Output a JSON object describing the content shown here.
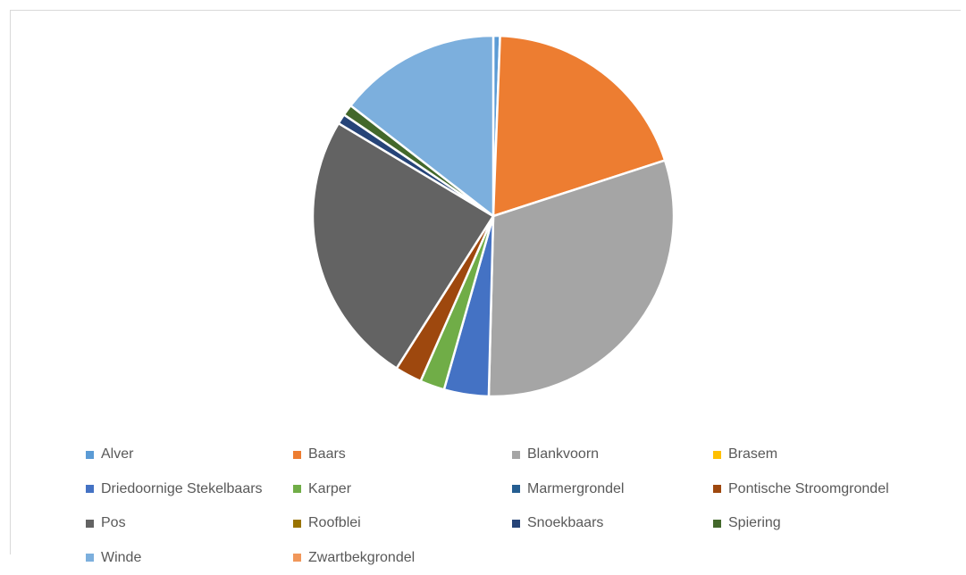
{
  "chart_data": {
    "type": "pie",
    "title": "",
    "legend_position": "bottom",
    "start_angle_deg": 0,
    "direction": "clockwise",
    "slices": [
      {
        "label": "Alver",
        "value": 0.6,
        "color": "#5b9bd5"
      },
      {
        "label": "Baars",
        "value": 19.4,
        "color": "#ed7d31"
      },
      {
        "label": "Blankvoorn",
        "value": 30.4,
        "color": "#a5a5a5"
      },
      {
        "label": "Brasem",
        "value": 0.0,
        "color": "#ffc000"
      },
      {
        "label": "Driedoornige Stekelbaars",
        "value": 4.0,
        "color": "#4472c4"
      },
      {
        "label": "Karper",
        "value": 2.2,
        "color": "#70ad47"
      },
      {
        "label": "Marmergrondel",
        "value": 0.0,
        "color": "#255e91"
      },
      {
        "label": "Pontische Stroomgrondel",
        "value": 2.4,
        "color": "#9e480e"
      },
      {
        "label": "Pos",
        "value": 24.6,
        "color": "#636363"
      },
      {
        "label": "Roofblei",
        "value": 0.0,
        "color": "#997300"
      },
      {
        "label": "Snoekbaars",
        "value": 0.9,
        "color": "#264478"
      },
      {
        "label": "Spiering",
        "value": 1.0,
        "color": "#43682b"
      },
      {
        "label": "Winde",
        "value": 14.5,
        "color": "#7cafdd"
      },
      {
        "label": "Zwartbekgrondel",
        "value": 0.0,
        "color": "#f1975a"
      }
    ]
  }
}
